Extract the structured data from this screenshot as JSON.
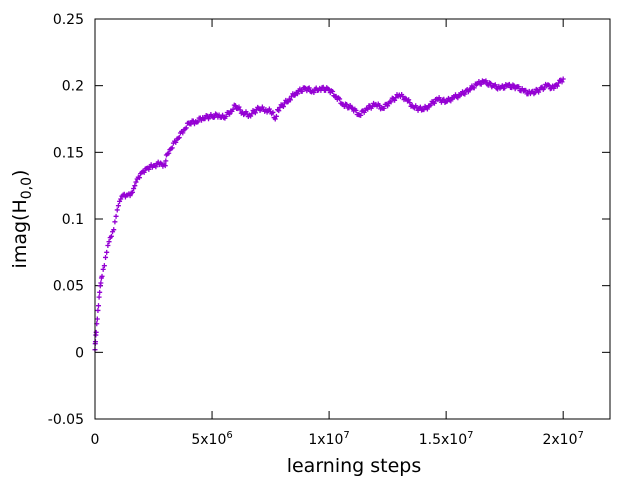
{
  "chart_data": {
    "type": "scatter",
    "xlabel": "learning steps",
    "ylabel_main": "imag(H",
    "ylabel_sub": "0,0",
    "ylabel_close": ")",
    "xlim": [
      0,
      22000000
    ],
    "ylim": [
      -0.05,
      0.25
    ],
    "grid": false,
    "y_ticks": [
      {
        "value": 0.25,
        "label": "0.25"
      },
      {
        "value": 0.2,
        "label": "0.2"
      },
      {
        "value": 0.15,
        "label": "0.15"
      },
      {
        "value": 0.1,
        "label": "0.1"
      },
      {
        "value": 0.05,
        "label": "0.05"
      },
      {
        "value": 0,
        "label": "0"
      },
      {
        "value": -0.05,
        "label": "-0.05"
      }
    ],
    "x_ticks": [
      {
        "value": 0,
        "base": "0",
        "exp": ""
      },
      {
        "value": 5000000,
        "base": "5x10",
        "exp": "6"
      },
      {
        "value": 10000000,
        "base": "1x10",
        "exp": "7"
      },
      {
        "value": 15000000,
        "base": "1.5x10",
        "exp": "7"
      },
      {
        "value": 20000000,
        "base": "2x10",
        "exp": "7"
      }
    ],
    "series": [
      {
        "color": "#9400d3",
        "marker": "plus",
        "points": [
          [
            0,
            0.002
          ],
          [
            20000,
            0.008
          ],
          [
            50000,
            0.015
          ],
          [
            100000,
            0.025
          ],
          [
            150000,
            0.035
          ],
          [
            200000,
            0.045
          ],
          [
            250000,
            0.052
          ],
          [
            300000,
            0.057
          ],
          [
            400000,
            0.065
          ],
          [
            500000,
            0.075
          ],
          [
            600000,
            0.083
          ],
          [
            700000,
            0.087
          ],
          [
            800000,
            0.092
          ],
          [
            900000,
            0.102
          ],
          [
            1000000,
            0.11
          ],
          [
            1100000,
            0.115
          ],
          [
            1200000,
            0.118
          ],
          [
            1400000,
            0.118
          ],
          [
            1600000,
            0.12
          ],
          [
            1700000,
            0.125
          ],
          [
            1800000,
            0.13
          ],
          [
            2000000,
            0.135
          ],
          [
            2200000,
            0.138
          ],
          [
            2500000,
            0.14
          ],
          [
            2800000,
            0.142
          ],
          [
            3000000,
            0.14
          ],
          [
            3050000,
            0.148
          ],
          [
            3200000,
            0.152
          ],
          [
            3500000,
            0.16
          ],
          [
            3800000,
            0.167
          ],
          [
            4000000,
            0.172
          ],
          [
            4300000,
            0.173
          ],
          [
            4600000,
            0.176
          ],
          [
            5000000,
            0.177
          ],
          [
            5300000,
            0.178
          ],
          [
            5500000,
            0.176
          ],
          [
            5800000,
            0.181
          ],
          [
            6000000,
            0.185
          ],
          [
            6300000,
            0.18
          ],
          [
            6600000,
            0.178
          ],
          [
            7000000,
            0.183
          ],
          [
            7300000,
            0.182
          ],
          [
            7600000,
            0.18
          ],
          [
            7700000,
            0.175
          ],
          [
            7800000,
            0.182
          ],
          [
            8000000,
            0.185
          ],
          [
            8300000,
            0.19
          ],
          [
            8600000,
            0.195
          ],
          [
            9000000,
            0.198
          ],
          [
            9300000,
            0.196
          ],
          [
            9600000,
            0.198
          ],
          [
            10000000,
            0.197
          ],
          [
            10300000,
            0.192
          ],
          [
            10600000,
            0.186
          ],
          [
            11000000,
            0.183
          ],
          [
            11300000,
            0.178
          ],
          [
            11600000,
            0.183
          ],
          [
            12000000,
            0.186
          ],
          [
            12300000,
            0.183
          ],
          [
            12600000,
            0.188
          ],
          [
            13000000,
            0.193
          ],
          [
            13300000,
            0.19
          ],
          [
            13600000,
            0.184
          ],
          [
            14000000,
            0.182
          ],
          [
            14300000,
            0.185
          ],
          [
            14600000,
            0.19
          ],
          [
            15000000,
            0.188
          ],
          [
            15300000,
            0.191
          ],
          [
            15600000,
            0.193
          ],
          [
            16000000,
            0.197
          ],
          [
            16300000,
            0.201
          ],
          [
            16600000,
            0.203
          ],
          [
            17000000,
            0.2
          ],
          [
            17300000,
            0.198
          ],
          [
            17600000,
            0.2
          ],
          [
            18000000,
            0.199
          ],
          [
            18300000,
            0.196
          ],
          [
            18600000,
            0.194
          ],
          [
            19000000,
            0.197
          ],
          [
            19300000,
            0.2
          ],
          [
            19600000,
            0.198
          ],
          [
            19800000,
            0.202
          ],
          [
            20000000,
            0.205
          ]
        ]
      }
    ]
  }
}
